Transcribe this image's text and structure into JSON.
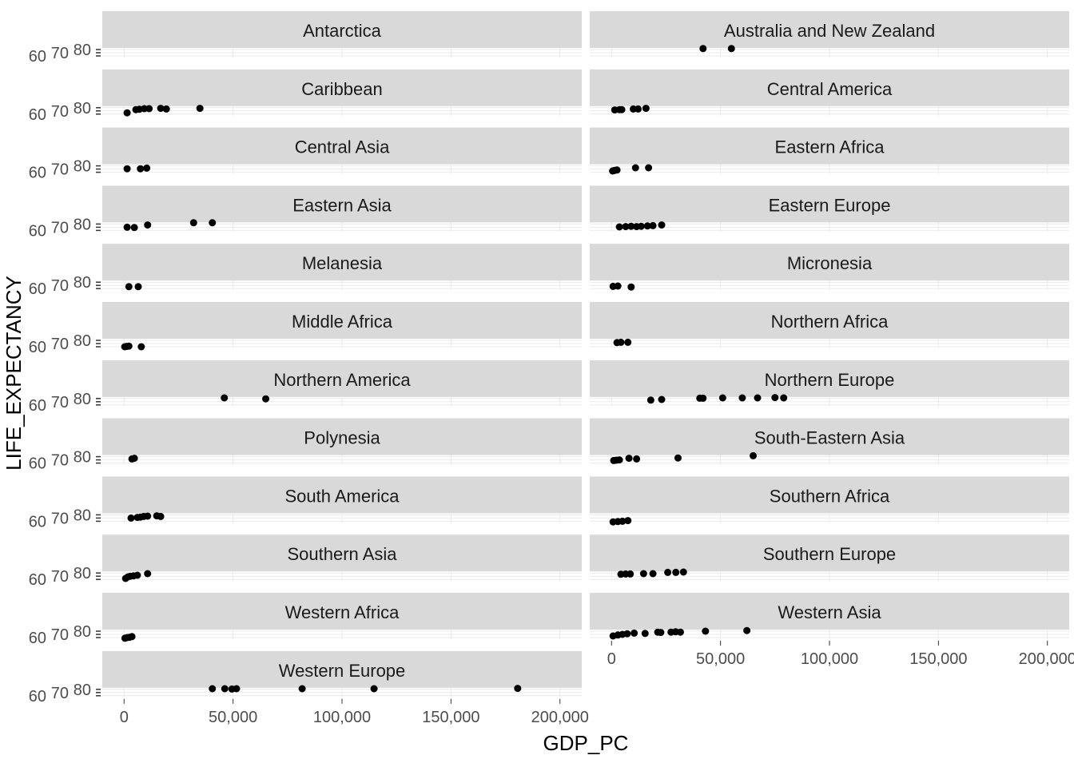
{
  "chart_data": {
    "type": "scatter",
    "xlabel": "GDP_PC",
    "ylabel": "LIFE_EXPECTANCY",
    "xlim": [
      -10000,
      210000
    ],
    "ylim": [
      55,
      85
    ],
    "x_ticks": [
      0,
      50000,
      100000,
      150000,
      200000
    ],
    "x_tick_labels": [
      "0",
      "50,000",
      "100,000",
      "150,000",
      "200,000"
    ],
    "y_ticks": [
      60,
      70,
      80
    ],
    "y_tick_labels": [
      "60",
      "70",
      "80"
    ],
    "grid": true,
    "point_color": "#000000",
    "strip_color": "#d9d9d9",
    "facets": [
      {
        "name": "Antarctica",
        "points": []
      },
      {
        "name": "Australia and New Zealand",
        "points": [
          [
            42000,
            83
          ],
          [
            55000,
            83
          ]
        ]
      },
      {
        "name": "Caribbean",
        "points": [
          [
            1400,
            64
          ],
          [
            5400,
            74
          ],
          [
            7000,
            75
          ],
          [
            9300,
            77
          ],
          [
            11500,
            77
          ],
          [
            16800,
            78
          ],
          [
            19400,
            76
          ],
          [
            34800,
            78
          ]
        ]
      },
      {
        "name": "Central America",
        "points": [
          [
            1500,
            73
          ],
          [
            3600,
            74
          ],
          [
            4700,
            74
          ],
          [
            10000,
            76
          ],
          [
            12200,
            76
          ],
          [
            15800,
            78
          ]
        ]
      },
      {
        "name": "Central Asia",
        "points": [
          [
            1400,
            71
          ],
          [
            7500,
            71
          ],
          [
            10400,
            73
          ]
        ]
      },
      {
        "name": "Eastern Africa",
        "points": [
          [
            500,
            64
          ],
          [
            1000,
            65
          ],
          [
            1500,
            66
          ],
          [
            2500,
            67
          ],
          [
            11000,
            74
          ],
          [
            17000,
            74
          ]
        ]
      },
      {
        "name": "Eastern Asia",
        "points": [
          [
            1400,
            70
          ],
          [
            4700,
            69
          ],
          [
            10800,
            77
          ],
          [
            31900,
            84
          ],
          [
            40500,
            84
          ]
        ]
      },
      {
        "name": "Eastern Europe",
        "points": [
          [
            3600,
            71
          ],
          [
            6500,
            72
          ],
          [
            9000,
            73
          ],
          [
            11500,
            72
          ],
          [
            13600,
            73
          ],
          [
            16500,
            74
          ],
          [
            19000,
            75
          ],
          [
            23000,
            77
          ]
        ]
      },
      {
        "name": "Melanesia",
        "points": [
          [
            2200,
            66
          ],
          [
            6500,
            66
          ]
        ]
      },
      {
        "name": "Micronesia",
        "points": [
          [
            700,
            67
          ],
          [
            2900,
            68
          ],
          [
            9000,
            65
          ]
        ]
      },
      {
        "name": "Middle Africa",
        "points": [
          [
            300,
            60
          ],
          [
            1100,
            61
          ],
          [
            2200,
            62
          ],
          [
            7900,
            60
          ]
        ]
      },
      {
        "name": "Northern Africa",
        "points": [
          [
            2500,
            73
          ],
          [
            4300,
            74
          ],
          [
            7500,
            74
          ]
        ]
      },
      {
        "name": "Northern America",
        "points": [
          [
            46000,
            82
          ],
          [
            65000,
            79
          ]
        ]
      },
      {
        "name": "Northern Europe",
        "points": [
          [
            18000,
            75
          ],
          [
            23000,
            77
          ],
          [
            40500,
            81
          ],
          [
            42000,
            81
          ],
          [
            51000,
            82
          ],
          [
            60000,
            82
          ],
          [
            67000,
            82
          ],
          [
            75000,
            83
          ],
          [
            79000,
            82
          ]
        ]
      },
      {
        "name": "Polynesia",
        "points": [
          [
            3600,
            73
          ],
          [
            4700,
            75
          ]
        ]
      },
      {
        "name": "South-Eastern Asia",
        "points": [
          [
            1000,
            68
          ],
          [
            2200,
            69
          ],
          [
            3600,
            70
          ],
          [
            8000,
            75
          ],
          [
            11500,
            73
          ],
          [
            30500,
            76
          ],
          [
            65000,
            83
          ]
        ]
      },
      {
        "name": "South America",
        "points": [
          [
            3200,
            70
          ],
          [
            6100,
            72
          ],
          [
            7500,
            73
          ],
          [
            9000,
            75
          ],
          [
            10800,
            76
          ],
          [
            15000,
            77
          ],
          [
            16800,
            75
          ]
        ]
      },
      {
        "name": "Southern Africa",
        "points": [
          [
            700,
            58
          ],
          [
            2900,
            59
          ],
          [
            5000,
            60
          ],
          [
            7500,
            62
          ]
        ]
      },
      {
        "name": "Southern Asia",
        "points": [
          [
            700,
            63
          ],
          [
            1800,
            68
          ],
          [
            2900,
            70
          ],
          [
            4300,
            71
          ],
          [
            6100,
            73
          ],
          [
            10800,
            78
          ]
        ]
      },
      {
        "name": "Southern Europe",
        "points": [
          [
            4300,
            76
          ],
          [
            6500,
            77
          ],
          [
            8600,
            77
          ],
          [
            14700,
            78
          ],
          [
            19000,
            78
          ],
          [
            25800,
            82
          ],
          [
            29500,
            82
          ],
          [
            33000,
            83
          ]
        ]
      },
      {
        "name": "Western Africa",
        "points": [
          [
            400,
            58
          ],
          [
            1400,
            60
          ],
          [
            2500,
            61
          ],
          [
            3600,
            63
          ]
        ]
      },
      {
        "name": "Western Asia",
        "points": [
          [
            700,
            65
          ],
          [
            2900,
            68
          ],
          [
            5000,
            70
          ],
          [
            7200,
            72
          ],
          [
            10400,
            74
          ],
          [
            15400,
            73
          ],
          [
            21200,
            77
          ],
          [
            22600,
            76
          ],
          [
            27300,
            77
          ],
          [
            29400,
            78
          ],
          [
            31600,
            77
          ],
          [
            43100,
            80
          ],
          [
            62100,
            82
          ]
        ]
      },
      {
        "name": "Western Europe",
        "points": [
          [
            40500,
            82
          ],
          [
            46200,
            82
          ],
          [
            49500,
            81
          ],
          [
            51600,
            82
          ],
          [
            81700,
            82
          ],
          [
            114700,
            82
          ],
          [
            180600,
            83
          ]
        ]
      }
    ]
  }
}
